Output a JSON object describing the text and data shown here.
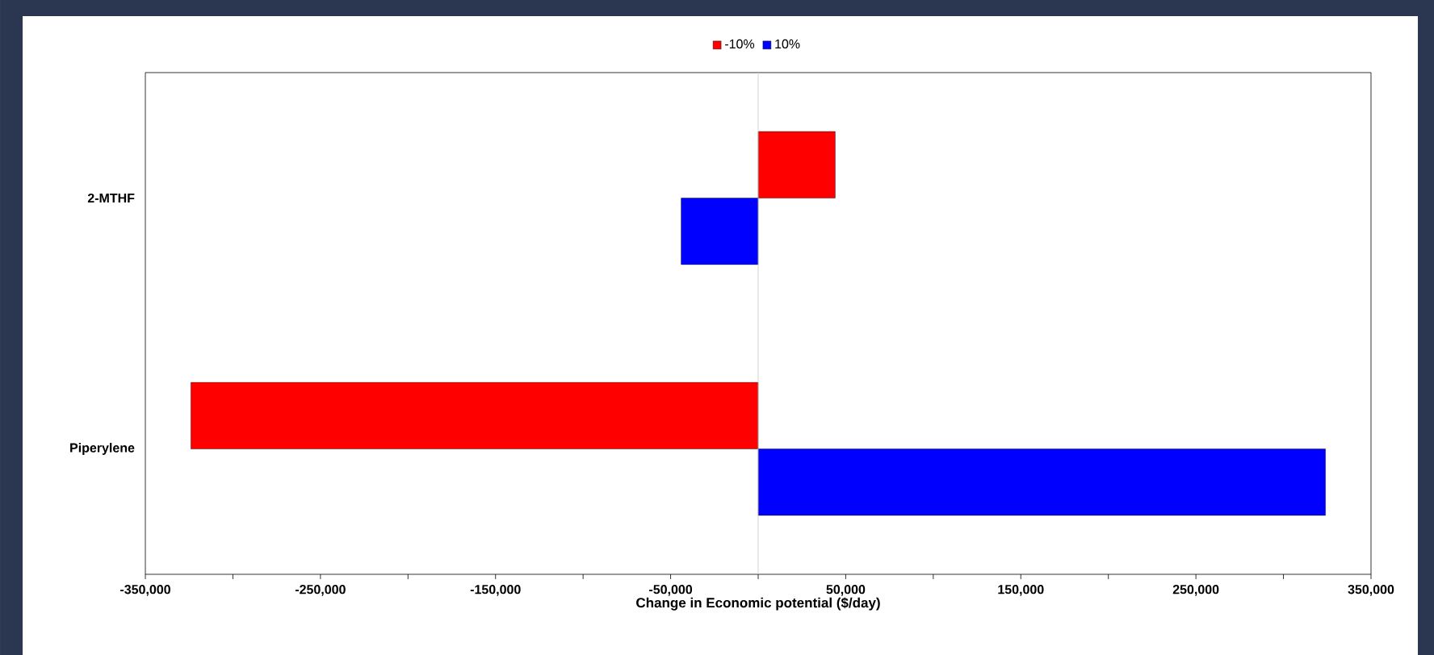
{
  "chart_data": {
    "type": "bar",
    "orientation": "horizontal",
    "categories": [
      "2-MTHF",
      "Piperylene"
    ],
    "series": [
      {
        "name": "-10%",
        "color": "#ff0000",
        "values": [
          44000,
          -324000
        ]
      },
      {
        "name": "10%",
        "color": "#0000ff",
        "values": [
          -44000,
          324000
        ]
      }
    ],
    "xlabel": "Change in Economic potential ($/day)",
    "xlim": [
      -350000,
      350000
    ],
    "xticks": [
      {
        "value": -350000,
        "label": "-350,000"
      },
      {
        "value": -300000,
        "label": null
      },
      {
        "value": -250000,
        "label": "-250,000"
      },
      {
        "value": -200000,
        "label": null
      },
      {
        "value": -150000,
        "label": "-150,000"
      },
      {
        "value": -100000,
        "label": null
      },
      {
        "value": -50000,
        "label": "-50,000"
      },
      {
        "value": 0,
        "label": null
      },
      {
        "value": 50000,
        "label": "50,000"
      },
      {
        "value": 100000,
        "label": null
      },
      {
        "value": 150000,
        "label": "150,000"
      },
      {
        "value": 200000,
        "label": null
      },
      {
        "value": 250000,
        "label": "250,000"
      },
      {
        "value": 300000,
        "label": null
      },
      {
        "value": 350000,
        "label": "350,000"
      }
    ],
    "ref_lines": [
      {
        "axis": "x",
        "value": 0,
        "color": "#c8c8c8"
      }
    ],
    "grid": false,
    "legend": "top"
  }
}
